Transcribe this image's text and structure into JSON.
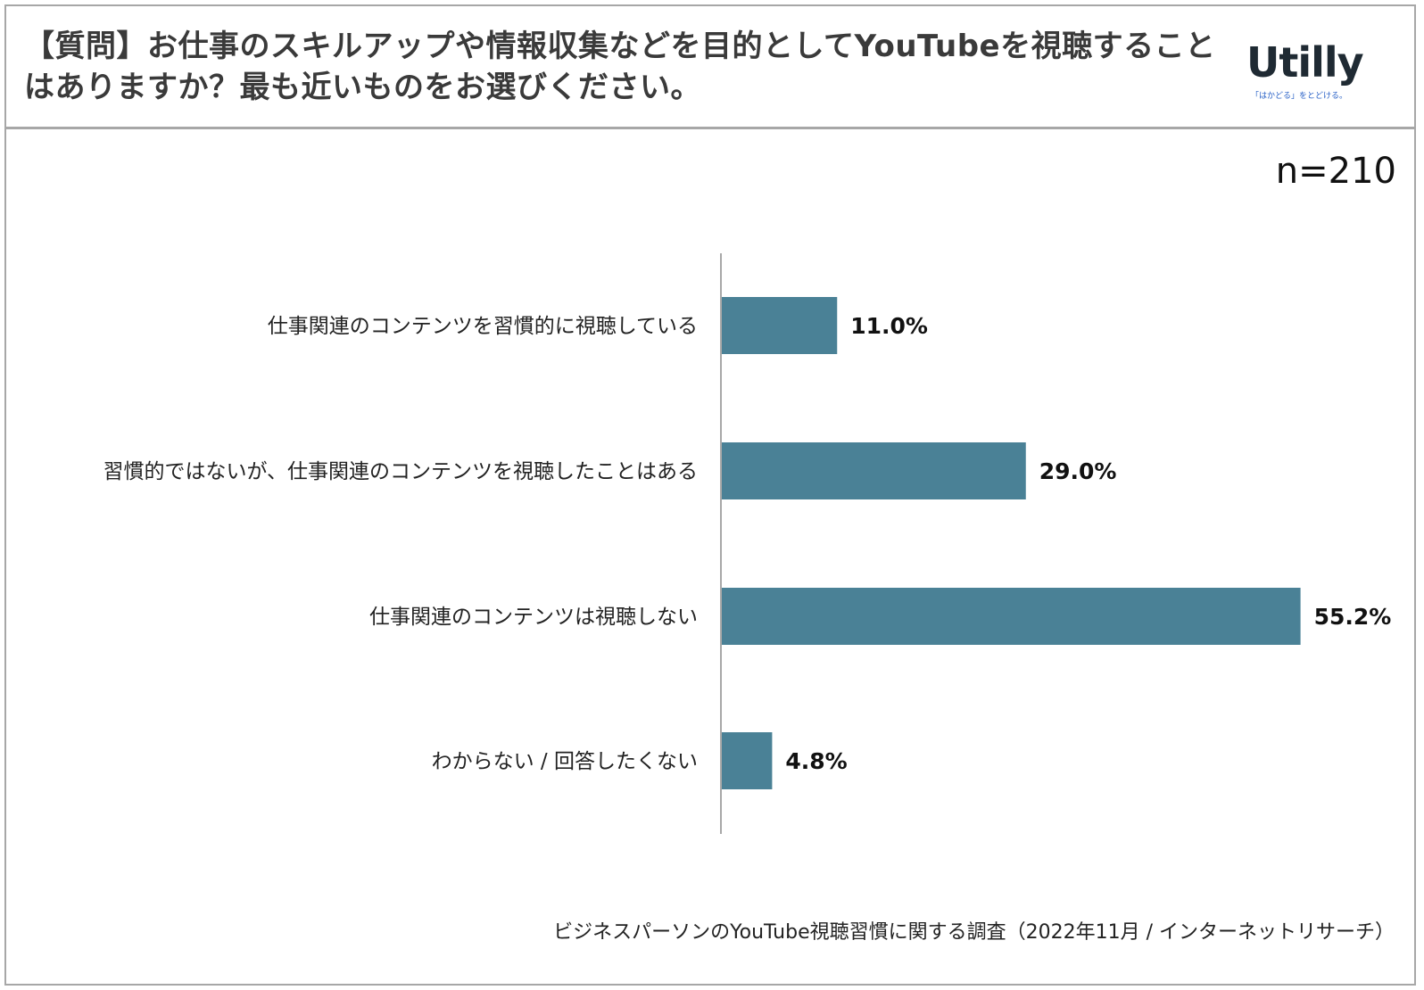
{
  "header": {
    "title": "【質問】お仕事のスキルアップや情報収集などを目的としてYouTubeを視聴することはありますか？最も近いものをお選びください。",
    "logo_text": "Utilly",
    "logo_tagline": "「はかどる」をとどける。"
  },
  "sample_size": "n=210",
  "source": "ビジネスパーソンのYouTube視聴習慣に関する調査（2022年11月 / インターネットリサーチ）",
  "chart_data": {
    "type": "bar",
    "orientation": "horizontal",
    "categories": [
      "仕事関連のコンテンツを習慣的に視聴している",
      "習慣的ではないが、仕事関連のコンテンツを視聴したことはある",
      "仕事関連のコンテンツは視聴しない",
      "わからない / 回答したくない"
    ],
    "values": [
      11.0,
      29.0,
      55.2,
      4.8
    ],
    "value_labels": [
      "11.0%",
      "29.0%",
      "55.2%",
      "4.8%"
    ],
    "unit": "%",
    "bar_color": "#4a8196",
    "grid": false,
    "legend": "none"
  }
}
